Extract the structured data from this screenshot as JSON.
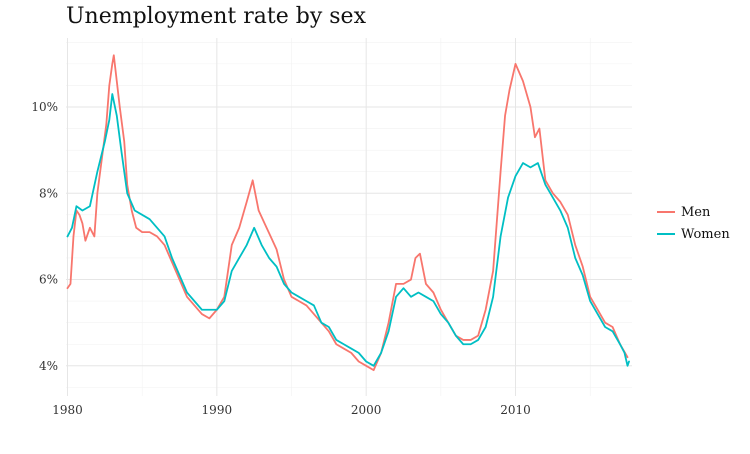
{
  "chart_data": {
    "type": "line",
    "title": "Unemployment rate by sex",
    "xlabel": "",
    "ylabel": "",
    "xlim": [
      1979.9,
      2017.8
    ],
    "ylim": [
      3.3,
      11.6
    ],
    "x_ticks": [
      1980,
      1990,
      2000,
      2010
    ],
    "x_tick_labels": [
      "1980",
      "1990",
      "2000",
      "2010"
    ],
    "y_ticks": [
      4,
      6,
      8,
      10
    ],
    "y_tick_labels": [
      "4%",
      "6%",
      "8%",
      "10%"
    ],
    "grid": true,
    "legend_position": "right",
    "series": [
      {
        "name": "Men",
        "color": "#F8766D",
        "points": [
          [
            1980.0,
            5.8
          ],
          [
            1980.2,
            5.9
          ],
          [
            1980.4,
            7.0
          ],
          [
            1980.6,
            7.6
          ],
          [
            1980.8,
            7.5
          ],
          [
            1981.0,
            7.3
          ],
          [
            1981.2,
            6.9
          ],
          [
            1981.5,
            7.2
          ],
          [
            1981.8,
            7.0
          ],
          [
            1982.0,
            8.0
          ],
          [
            1982.3,
            8.8
          ],
          [
            1982.6,
            9.6
          ],
          [
            1982.8,
            10.5
          ],
          [
            1983.0,
            11.0
          ],
          [
            1983.1,
            11.2
          ],
          [
            1983.3,
            10.6
          ],
          [
            1983.5,
            10.0
          ],
          [
            1983.8,
            9.2
          ],
          [
            1984.0,
            8.2
          ],
          [
            1984.3,
            7.6
          ],
          [
            1984.6,
            7.2
          ],
          [
            1985.0,
            7.1
          ],
          [
            1985.5,
            7.1
          ],
          [
            1986.0,
            7.0
          ],
          [
            1986.5,
            6.8
          ],
          [
            1987.0,
            6.4
          ],
          [
            1987.5,
            6.0
          ],
          [
            1988.0,
            5.6
          ],
          [
            1988.5,
            5.4
          ],
          [
            1989.0,
            5.2
          ],
          [
            1989.5,
            5.1
          ],
          [
            1990.0,
            5.3
          ],
          [
            1990.5,
            5.6
          ],
          [
            1991.0,
            6.8
          ],
          [
            1991.5,
            7.2
          ],
          [
            1992.0,
            7.8
          ],
          [
            1992.4,
            8.3
          ],
          [
            1992.8,
            7.6
          ],
          [
            1993.2,
            7.3
          ],
          [
            1993.6,
            7.0
          ],
          [
            1994.0,
            6.7
          ],
          [
            1994.5,
            6.0
          ],
          [
            1995.0,
            5.6
          ],
          [
            1995.5,
            5.5
          ],
          [
            1996.0,
            5.4
          ],
          [
            1996.5,
            5.2
          ],
          [
            1997.0,
            5.0
          ],
          [
            1997.5,
            4.8
          ],
          [
            1998.0,
            4.5
          ],
          [
            1998.5,
            4.4
          ],
          [
            1999.0,
            4.3
          ],
          [
            1999.5,
            4.1
          ],
          [
            2000.0,
            4.0
          ],
          [
            2000.5,
            3.9
          ],
          [
            2001.0,
            4.3
          ],
          [
            2001.5,
            5.0
          ],
          [
            2002.0,
            5.9
          ],
          [
            2002.5,
            5.9
          ],
          [
            2003.0,
            6.0
          ],
          [
            2003.3,
            6.5
          ],
          [
            2003.6,
            6.6
          ],
          [
            2004.0,
            5.9
          ],
          [
            2004.5,
            5.7
          ],
          [
            2005.0,
            5.3
          ],
          [
            2005.5,
            5.0
          ],
          [
            2006.0,
            4.7
          ],
          [
            2006.5,
            4.6
          ],
          [
            2007.0,
            4.6
          ],
          [
            2007.5,
            4.7
          ],
          [
            2008.0,
            5.3
          ],
          [
            2008.5,
            6.2
          ],
          [
            2009.0,
            8.5
          ],
          [
            2009.3,
            9.8
          ],
          [
            2009.6,
            10.4
          ],
          [
            2010.0,
            11.0
          ],
          [
            2010.5,
            10.6
          ],
          [
            2011.0,
            10.0
          ],
          [
            2011.3,
            9.3
          ],
          [
            2011.6,
            9.5
          ],
          [
            2012.0,
            8.3
          ],
          [
            2012.5,
            8.0
          ],
          [
            2013.0,
            7.8
          ],
          [
            2013.5,
            7.5
          ],
          [
            2014.0,
            6.8
          ],
          [
            2014.5,
            6.3
          ],
          [
            2015.0,
            5.6
          ],
          [
            2015.5,
            5.3
          ],
          [
            2016.0,
            5.0
          ],
          [
            2016.5,
            4.9
          ],
          [
            2017.0,
            4.5
          ],
          [
            2017.5,
            4.2
          ]
        ]
      },
      {
        "name": "Women",
        "color": "#00BFC4",
        "points": [
          [
            1980.0,
            7.0
          ],
          [
            1980.3,
            7.2
          ],
          [
            1980.6,
            7.7
          ],
          [
            1981.0,
            7.6
          ],
          [
            1981.5,
            7.7
          ],
          [
            1982.0,
            8.5
          ],
          [
            1982.5,
            9.2
          ],
          [
            1982.8,
            9.7
          ],
          [
            1983.0,
            10.3
          ],
          [
            1983.3,
            9.8
          ],
          [
            1983.6,
            9.0
          ],
          [
            1984.0,
            8.0
          ],
          [
            1984.5,
            7.6
          ],
          [
            1985.0,
            7.5
          ],
          [
            1985.5,
            7.4
          ],
          [
            1986.0,
            7.2
          ],
          [
            1986.5,
            7.0
          ],
          [
            1987.0,
            6.5
          ],
          [
            1987.5,
            6.1
          ],
          [
            1988.0,
            5.7
          ],
          [
            1988.5,
            5.5
          ],
          [
            1989.0,
            5.3
          ],
          [
            1989.5,
            5.3
          ],
          [
            1990.0,
            5.3
          ],
          [
            1990.5,
            5.5
          ],
          [
            1991.0,
            6.2
          ],
          [
            1991.5,
            6.5
          ],
          [
            1992.0,
            6.8
          ],
          [
            1992.5,
            7.2
          ],
          [
            1993.0,
            6.8
          ],
          [
            1993.5,
            6.5
          ],
          [
            1994.0,
            6.3
          ],
          [
            1994.5,
            5.9
          ],
          [
            1995.0,
            5.7
          ],
          [
            1995.5,
            5.6
          ],
          [
            1996.0,
            5.5
          ],
          [
            1996.5,
            5.4
          ],
          [
            1997.0,
            5.0
          ],
          [
            1997.5,
            4.9
          ],
          [
            1998.0,
            4.6
          ],
          [
            1998.5,
            4.5
          ],
          [
            1999.0,
            4.4
          ],
          [
            1999.5,
            4.3
          ],
          [
            2000.0,
            4.1
          ],
          [
            2000.5,
            4.0
          ],
          [
            2001.0,
            4.3
          ],
          [
            2001.5,
            4.8
          ],
          [
            2002.0,
            5.6
          ],
          [
            2002.5,
            5.8
          ],
          [
            2003.0,
            5.6
          ],
          [
            2003.5,
            5.7
          ],
          [
            2004.0,
            5.6
          ],
          [
            2004.5,
            5.5
          ],
          [
            2005.0,
            5.2
          ],
          [
            2005.5,
            5.0
          ],
          [
            2006.0,
            4.7
          ],
          [
            2006.5,
            4.5
          ],
          [
            2007.0,
            4.5
          ],
          [
            2007.5,
            4.6
          ],
          [
            2008.0,
            4.9
          ],
          [
            2008.5,
            5.6
          ],
          [
            2009.0,
            7.0
          ],
          [
            2009.5,
            7.9
          ],
          [
            2010.0,
            8.4
          ],
          [
            2010.5,
            8.7
          ],
          [
            2011.0,
            8.6
          ],
          [
            2011.5,
            8.7
          ],
          [
            2012.0,
            8.2
          ],
          [
            2012.5,
            7.9
          ],
          [
            2013.0,
            7.6
          ],
          [
            2013.5,
            7.2
          ],
          [
            2014.0,
            6.5
          ],
          [
            2014.5,
            6.1
          ],
          [
            2015.0,
            5.5
          ],
          [
            2015.5,
            5.2
          ],
          [
            2016.0,
            4.9
          ],
          [
            2016.5,
            4.8
          ],
          [
            2017.0,
            4.5
          ],
          [
            2017.3,
            4.3
          ],
          [
            2017.5,
            4.0
          ],
          [
            2017.6,
            4.1
          ]
        ]
      }
    ],
    "colors": {
      "grid_major": "#E6E6E6",
      "grid_minor": "#F2F2F2",
      "tick_text": "#333333"
    }
  }
}
